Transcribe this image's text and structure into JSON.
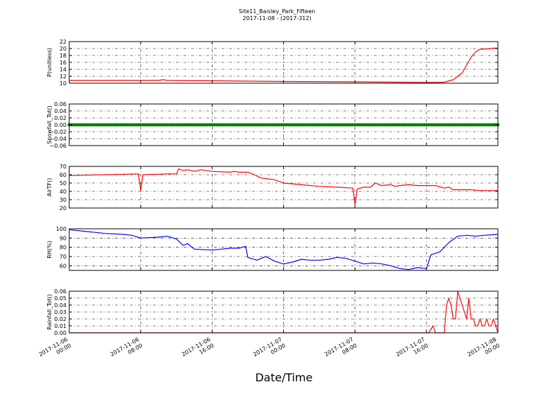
{
  "figure": {
    "title_line1": "Site11_Baisley_Park_Fifteen",
    "title_line2": "2017-11-08 - (2017-312)",
    "xlabel": "Date/Time"
  },
  "chart_data": {
    "type": "line",
    "x_axis": {
      "kind": "datetime",
      "range": [
        "2017-11-06 00:00",
        "2017-11-08 00:00"
      ],
      "ticks": [
        "2017-11-06 00:00",
        "2017-11-06 08:00",
        "2017-11-06 16:00",
        "2017-11-07 00:00",
        "2017-11-07 08:00",
        "2017-11-07 16:00",
        "2017-11-08 00:00"
      ],
      "tick_labels": [
        [
          "2017-11-06",
          "00:00"
        ],
        [
          "2017-11-06",
          "08:00"
        ],
        [
          "2017-11-06",
          "16:00"
        ],
        [
          "2017-11-07",
          "00:00"
        ],
        [
          "2017-11-07",
          "08:00"
        ],
        [
          "2017-11-07",
          "16:00"
        ],
        [
          "2017-11-08",
          "00:00"
        ]
      ]
    },
    "grid": true,
    "panels": [
      {
        "ylabel": "P(unitless)",
        "ylim": [
          10,
          22
        ],
        "yticks": [
          10,
          12,
          14,
          16,
          18,
          20,
          22
        ],
        "tick_labels": [
          "10",
          "12",
          "14",
          "16",
          "18",
          "20",
          "22"
        ],
        "series": [
          {
            "color": "#ff0000",
            "kind": "line",
            "points": [
              [
                "2017-11-06 00:00",
                10.8
              ],
              [
                "2017-11-06 10:00",
                10.8
              ],
              [
                "2017-11-06 10:30",
                11.0
              ],
              [
                "2017-11-06 11:00",
                10.8
              ],
              [
                "2017-11-06 16:00",
                10.7
              ],
              [
                "2017-11-07 00:00",
                10.5
              ],
              [
                "2017-11-07 08:00",
                10.4
              ],
              [
                "2017-11-07 16:00",
                10.2
              ],
              [
                "2017-11-07 18:00",
                10.3
              ],
              [
                "2017-11-07 19:00",
                11.0
              ],
              [
                "2017-11-07 20:00",
                13.0
              ],
              [
                "2017-11-07 21:00",
                17.5
              ],
              [
                "2017-11-07 21:30",
                19.0
              ],
              [
                "2017-11-07 22:00",
                19.8
              ],
              [
                "2017-11-07 23:00",
                19.9
              ],
              [
                "2017-11-07 23:30",
                20.1
              ],
              [
                "2017-11-08 00:00",
                20.1
              ]
            ]
          }
        ]
      },
      {
        "ylabel": "Snowfall_Tot()",
        "ylim": [
          -0.06,
          0.06
        ],
        "yticks": [
          -0.06,
          -0.04,
          -0.02,
          0.0,
          0.02,
          0.04,
          0.06
        ],
        "tick_labels": [
          "−0.06",
          "−0.04",
          "−0.02",
          "0.00",
          "0.02",
          "0.04",
          "0.06"
        ],
        "series": [
          {
            "color": "#008000",
            "kind": "markers",
            "interval_minutes": 15,
            "value": 0.0
          }
        ]
      },
      {
        "ylabel": "AirTF()",
        "ylim": [
          20,
          70
        ],
        "yticks": [
          20,
          30,
          40,
          50,
          60,
          70
        ],
        "tick_labels": [
          "20",
          "30",
          "40",
          "50",
          "60",
          "70"
        ],
        "series": [
          {
            "color": "#ff0000",
            "kind": "line",
            "points": [
              [
                "2017-11-06 00:00",
                59
              ],
              [
                "2017-11-06 04:00",
                60
              ],
              [
                "2017-11-06 07:45",
                61
              ],
              [
                "2017-11-06 08:00",
                41
              ],
              [
                "2017-11-06 08:15",
                60
              ],
              [
                "2017-11-06 11:00",
                61
              ],
              [
                "2017-11-06 12:00",
                61
              ],
              [
                "2017-11-06 12:15",
                67
              ],
              [
                "2017-11-06 12:45",
                65
              ],
              [
                "2017-11-06 13:15",
                66
              ],
              [
                "2017-11-06 14:00",
                64
              ],
              [
                "2017-11-06 14:45",
                66
              ],
              [
                "2017-11-06 16:00",
                64
              ],
              [
                "2017-11-06 18:00",
                63
              ],
              [
                "2017-11-06 18:30",
                64
              ],
              [
                "2017-11-06 19:00",
                63
              ],
              [
                "2017-11-06 20:00",
                63
              ],
              [
                "2017-11-06 20:45",
                60
              ],
              [
                "2017-11-06 21:30",
                56
              ],
              [
                "2017-11-06 23:00",
                54
              ],
              [
                "2017-11-07 00:00",
                50
              ],
              [
                "2017-11-07 02:00",
                48
              ],
              [
                "2017-11-07 04:00",
                46
              ],
              [
                "2017-11-07 06:00",
                45
              ],
              [
                "2017-11-07 07:45",
                44
              ],
              [
                "2017-11-07 08:00",
                24
              ],
              [
                "2017-11-07 08:15",
                43
              ],
              [
                "2017-11-07 09:00",
                45
              ],
              [
                "2017-11-07 09:45",
                45
              ],
              [
                "2017-11-07 10:15",
                50
              ],
              [
                "2017-11-07 11:00",
                47
              ],
              [
                "2017-11-07 12:00",
                48
              ],
              [
                "2017-11-07 12:30",
                46
              ],
              [
                "2017-11-07 13:00",
                47
              ],
              [
                "2017-11-07 14:00",
                48
              ],
              [
                "2017-11-07 15:00",
                47
              ],
              [
                "2017-11-07 16:00",
                47
              ],
              [
                "2017-11-07 17:00",
                47
              ],
              [
                "2017-11-07 18:00",
                44
              ],
              [
                "2017-11-07 18:30",
                45
              ],
              [
                "2017-11-07 19:00",
                42
              ],
              [
                "2017-11-07 21:00",
                42
              ],
              [
                "2017-11-07 22:00",
                41
              ],
              [
                "2017-11-08 00:00",
                41
              ]
            ]
          }
        ]
      },
      {
        "ylabel": "RH(%)",
        "ylim": [
          55,
          100
        ],
        "yticks": [
          60,
          70,
          80,
          90,
          100
        ],
        "tick_labels": [
          "60",
          "70",
          "80",
          "90",
          "100"
        ],
        "series": [
          {
            "color": "#0000ff",
            "kind": "line",
            "points": [
              [
                "2017-11-06 00:00",
                99
              ],
              [
                "2017-11-06 02:00",
                97
              ],
              [
                "2017-11-06 03:00",
                96
              ],
              [
                "2017-11-06 04:00",
                95
              ],
              [
                "2017-11-06 06:00",
                94
              ],
              [
                "2017-11-06 07:00",
                93
              ],
              [
                "2017-11-06 08:00",
                90
              ],
              [
                "2017-11-06 10:00",
                91
              ],
              [
                "2017-11-06 11:00",
                92
              ],
              [
                "2017-11-06 12:00",
                89
              ],
              [
                "2017-11-06 12:45",
                82
              ],
              [
                "2017-11-06 13:15",
                84
              ],
              [
                "2017-11-06 14:00",
                78
              ],
              [
                "2017-11-06 16:00",
                77
              ],
              [
                "2017-11-06 17:00",
                78
              ],
              [
                "2017-11-06 18:00",
                79
              ],
              [
                "2017-11-06 19:00",
                79
              ],
              [
                "2017-11-06 19:45",
                81
              ],
              [
                "2017-11-06 20:00",
                69
              ],
              [
                "2017-11-06 21:00",
                66
              ],
              [
                "2017-11-06 22:00",
                70
              ],
              [
                "2017-11-06 23:00",
                65
              ],
              [
                "2017-11-07 00:00",
                62
              ],
              [
                "2017-11-07 01:00",
                64
              ],
              [
                "2017-11-07 02:00",
                67
              ],
              [
                "2017-11-07 03:00",
                66
              ],
              [
                "2017-11-07 04:00",
                66
              ],
              [
                "2017-11-07 05:00",
                67
              ],
              [
                "2017-11-07 06:00",
                69
              ],
              [
                "2017-11-07 07:00",
                68
              ],
              [
                "2017-11-07 08:00",
                65
              ],
              [
                "2017-11-07 09:00",
                62
              ],
              [
                "2017-11-07 10:00",
                63
              ],
              [
                "2017-11-07 11:00",
                62
              ],
              [
                "2017-11-07 12:00",
                60
              ],
              [
                "2017-11-07 13:00",
                57
              ],
              [
                "2017-11-07 14:00",
                56
              ],
              [
                "2017-11-07 15:00",
                58
              ],
              [
                "2017-11-07 16:00",
                57
              ],
              [
                "2017-11-07 16:30",
                72
              ],
              [
                "2017-11-07 17:30",
                75
              ],
              [
                "2017-11-07 18:30",
                85
              ],
              [
                "2017-11-07 19:30",
                92
              ],
              [
                "2017-11-07 20:30",
                93
              ],
              [
                "2017-11-07 21:30",
                92
              ],
              [
                "2017-11-07 22:30",
                93
              ],
              [
                "2017-11-08 00:00",
                94
              ]
            ]
          }
        ]
      },
      {
        "ylabel": "Rainfall_Tot()",
        "ylim": [
          0,
          0.06
        ],
        "yticks": [
          0.0,
          0.01,
          0.02,
          0.03,
          0.04,
          0.05,
          0.06
        ],
        "tick_labels": [
          "0.00",
          "0.01",
          "0.02",
          "0.03",
          "0.04",
          "0.05",
          "0.06"
        ],
        "series": [
          {
            "color": "#ff0000",
            "kind": "line",
            "points": [
              [
                "2017-11-06 00:00",
                0.0
              ],
              [
                "2017-11-07 16:15",
                0.0
              ],
              [
                "2017-11-07 16:45",
                0.01
              ],
              [
                "2017-11-07 17:00",
                0.0
              ],
              [
                "2017-11-07 18:00",
                0.0
              ],
              [
                "2017-11-07 18:15",
                0.04
              ],
              [
                "2017-11-07 18:30",
                0.05
              ],
              [
                "2017-11-07 18:45",
                0.04
              ],
              [
                "2017-11-07 19:00",
                0.02
              ],
              [
                "2017-11-07 19:15",
                0.02
              ],
              [
                "2017-11-07 19:30",
                0.06
              ],
              [
                "2017-11-07 19:45",
                0.05
              ],
              [
                "2017-11-07 20:00",
                0.04
              ],
              [
                "2017-11-07 20:15",
                0.03
              ],
              [
                "2017-11-07 20:30",
                0.02
              ],
              [
                "2017-11-07 20:45",
                0.05
              ],
              [
                "2017-11-07 21:00",
                0.02
              ],
              [
                "2017-11-07 21:15",
                0.02
              ],
              [
                "2017-11-07 21:30",
                0.01
              ],
              [
                "2017-11-07 21:45",
                0.01
              ],
              [
                "2017-11-07 22:00",
                0.02
              ],
              [
                "2017-11-07 22:15",
                0.01
              ],
              [
                "2017-11-07 22:30",
                0.01
              ],
              [
                "2017-11-07 22:45",
                0.02
              ],
              [
                "2017-11-07 23:00",
                0.01
              ],
              [
                "2017-11-07 23:15",
                0.01
              ],
              [
                "2017-11-07 23:30",
                0.02
              ],
              [
                "2017-11-07 23:45",
                0.01
              ],
              [
                "2017-11-08 00:00",
                0.0
              ]
            ]
          }
        ]
      }
    ]
  }
}
